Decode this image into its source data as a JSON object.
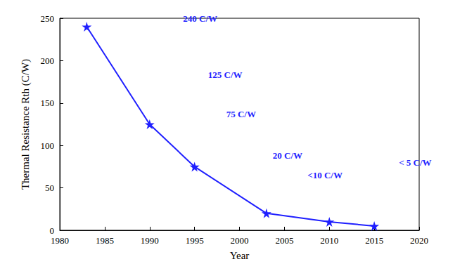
{
  "chart_data": {
    "type": "line",
    "x_label": "Year",
    "y_label": "Thermal Resistance Rth (C/W)",
    "x": [
      1983,
      1990,
      1995,
      2003,
      2010,
      2015
    ],
    "values": [
      240,
      125,
      75,
      20,
      10,
      5
    ],
    "value_labels": [
      "240 C/W",
      "125 C/W",
      "75 C/W",
      "20 C/W",
      "<10 C/W",
      "< 5 C/W"
    ],
    "data_labels": true,
    "color": "#1f1fff",
    "marker": "star",
    "line_style": "solid",
    "xlim": [
      1980,
      2020
    ],
    "xticks": [
      1980,
      1985,
      1990,
      1995,
      2000,
      2005,
      2010,
      2015,
      2020
    ],
    "ylim": [
      0,
      250
    ],
    "yticks": [
      0,
      50,
      100,
      150,
      200,
      250
    ],
    "grid": false
  }
}
